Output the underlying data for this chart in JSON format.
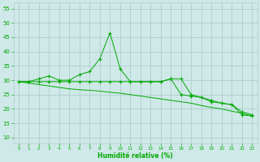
{
  "background_color": "#cfe8e8",
  "grid_color": "#aecece",
  "line_color": "#00aa00",
  "xlabel": "Humidité relative (%)",
  "xlabel_color": "#00aa00",
  "tick_color": "#00aa00",
  "xlim": [
    -0.5,
    23.5
  ],
  "ylim": [
    8,
    57
  ],
  "yticks": [
    10,
    15,
    20,
    25,
    30,
    35,
    40,
    45,
    50,
    55
  ],
  "xticks": [
    0,
    1,
    2,
    3,
    4,
    5,
    6,
    7,
    8,
    9,
    10,
    11,
    12,
    13,
    14,
    15,
    16,
    17,
    18,
    19,
    20,
    21,
    22,
    23
  ],
  "series1_x": [
    0,
    1,
    2,
    3,
    4,
    5,
    6,
    7,
    8,
    9,
    10,
    11,
    12,
    13,
    14,
    15,
    16,
    17,
    18,
    19,
    20,
    21,
    22,
    23
  ],
  "series1_y": [
    29.5,
    29.5,
    30.5,
    31.5,
    30.0,
    30.0,
    32.0,
    33.0,
    37.5,
    46.5,
    34.0,
    29.5,
    29.5,
    29.5,
    29.5,
    30.5,
    30.5,
    25.0,
    24.0,
    23.0,
    22.0,
    21.5,
    19.0,
    18.0
  ],
  "series2_x": [
    0,
    1,
    2,
    3,
    4,
    5,
    6,
    7,
    8,
    9,
    10,
    11,
    12,
    13,
    14,
    15,
    16,
    17,
    18,
    19,
    20,
    21,
    22,
    23
  ],
  "series2_y": [
    29.5,
    29.5,
    29.5,
    29.5,
    29.5,
    29.5,
    29.5,
    29.5,
    29.5,
    29.5,
    29.5,
    29.5,
    29.5,
    29.5,
    29.5,
    30.5,
    25.0,
    24.5,
    24.0,
    22.5,
    22.0,
    21.5,
    18.0,
    17.5
  ],
  "series3_x": [
    0,
    1,
    2,
    3,
    4,
    5,
    6,
    7,
    8,
    9,
    10,
    11,
    12,
    13,
    14,
    15,
    16,
    17,
    18,
    19,
    20,
    21,
    22,
    23
  ],
  "series3_y": [
    29.5,
    29.0,
    28.5,
    28.0,
    27.5,
    27.0,
    26.7,
    26.5,
    26.2,
    25.8,
    25.5,
    25.0,
    24.5,
    24.0,
    23.5,
    23.0,
    22.5,
    22.0,
    21.2,
    20.5,
    20.0,
    19.2,
    18.5,
    17.5
  ]
}
